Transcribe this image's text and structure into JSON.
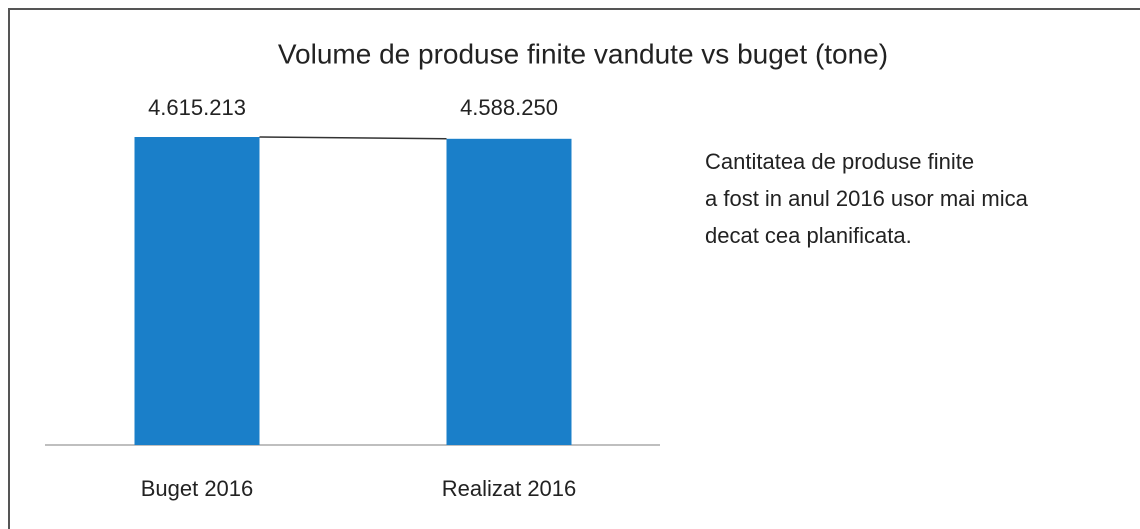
{
  "chart_data": {
    "type": "bar",
    "title": "Volume de produse finite vandute vs buget (tone)",
    "categories": [
      "Buget 2016",
      "Realizat 2016"
    ],
    "values": [
      4615213,
      4588250
    ],
    "value_labels": [
      "4.615.213",
      "4.588.250"
    ],
    "color": "#1a7fc9",
    "annotation": [
      "Cantitatea de produse finite",
      "a fost in anul 2016 usor mai mica",
      "decat cea planificata."
    ]
  }
}
